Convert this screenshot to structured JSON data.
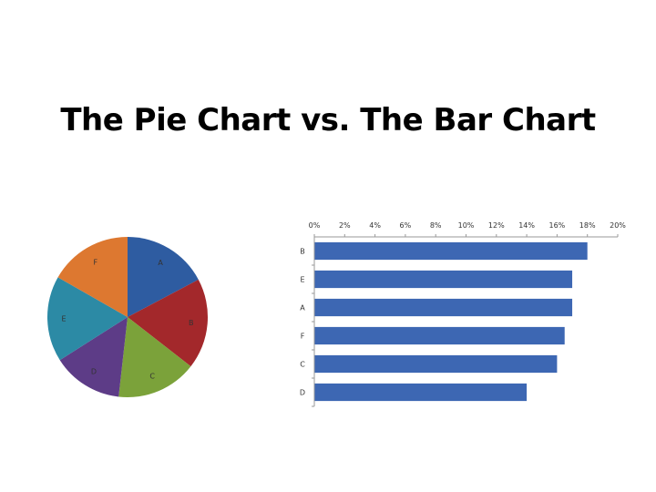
{
  "title": "The Pie Chart vs. The Bar Chart",
  "chart_data": [
    {
      "type": "pie",
      "slices": [
        {
          "label": "A",
          "value": 17,
          "color": "#2e5ca1"
        },
        {
          "label": "B",
          "value": 18,
          "color": "#a3282b"
        },
        {
          "label": "C",
          "value": 16,
          "color": "#7ba23a"
        },
        {
          "label": "D",
          "value": 14,
          "color": "#5d3c87"
        },
        {
          "label": "E",
          "value": 17,
          "color": "#2c8aa5"
        },
        {
          "label": "F",
          "value": 16.5,
          "color": "#dd7830"
        }
      ]
    },
    {
      "type": "bar",
      "orientation": "horizontal",
      "categories": [
        "B",
        "E",
        "A",
        "F",
        "C",
        "D"
      ],
      "values": [
        18,
        17,
        17,
        16.5,
        16,
        14
      ],
      "tick_labels": [
        "0%",
        "2%",
        "4%",
        "6%",
        "8%",
        "10%",
        "12%",
        "14%",
        "16%",
        "18%",
        "20%"
      ],
      "xlim": [
        0,
        20
      ],
      "axis_position": "top",
      "bar_color": "#3d67b3",
      "grid": false
    }
  ]
}
